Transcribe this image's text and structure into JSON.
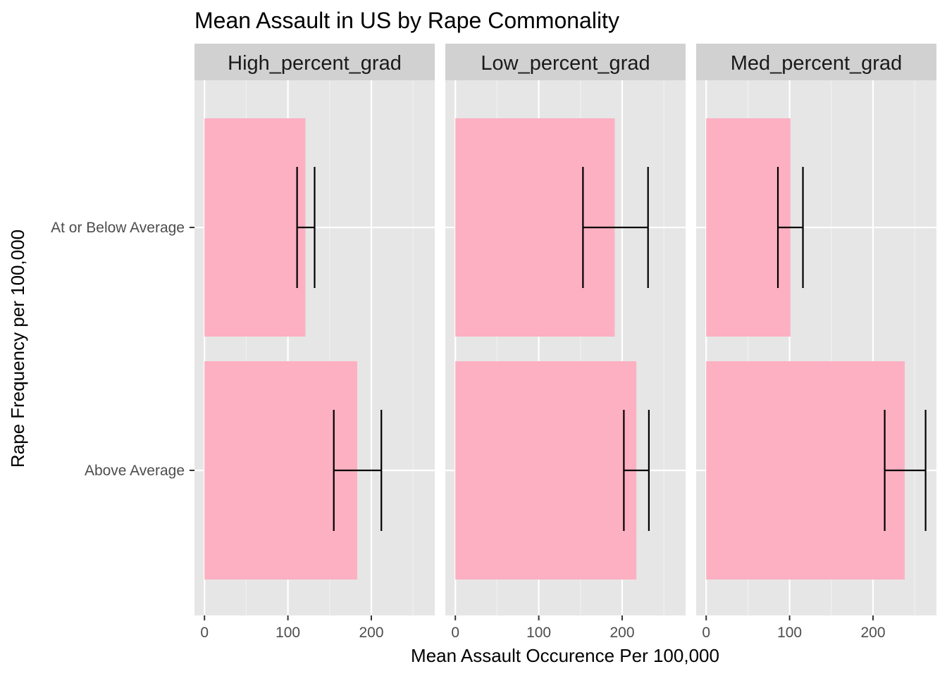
{
  "chart_data": {
    "type": "bar",
    "orientation": "horizontal",
    "title": "Mean Assault in US by Rape Commonality",
    "xlabel": "Mean Assault Occurence Per 100,000",
    "ylabel": "Rape Frequency per 100,000",
    "categories": [
      "At or Below Average",
      "Above Average"
    ],
    "x_ticks": [
      0,
      100,
      200
    ],
    "xlim": [
      -12,
      276
    ],
    "grid": true,
    "colors": {
      "bar": "#fcb0c1",
      "panel_bg": "#e6e6e6",
      "strip_bg": "#d1d1d1",
      "grid_major": "#ffffff",
      "errorbar": "#000000"
    },
    "facets": [
      {
        "name": "High_percent_grad",
        "bars": [
          {
            "category": "At or Below Average",
            "value": 121,
            "err_low": 111,
            "err_high": 132
          },
          {
            "category": "Above Average",
            "value": 183,
            "err_low": 155,
            "err_high": 212
          }
        ]
      },
      {
        "name": "Low_percent_grad",
        "bars": [
          {
            "category": "At or Below Average",
            "value": 191,
            "err_low": 153,
            "err_high": 231
          },
          {
            "category": "Above Average",
            "value": 217,
            "err_low": 202,
            "err_high": 232
          }
        ]
      },
      {
        "name": "Med_percent_grad",
        "bars": [
          {
            "category": "At or Below Average",
            "value": 101,
            "err_low": 86,
            "err_high": 116
          },
          {
            "category": "Above Average",
            "value": 238,
            "err_low": 214,
            "err_high": 263
          }
        ]
      }
    ]
  }
}
